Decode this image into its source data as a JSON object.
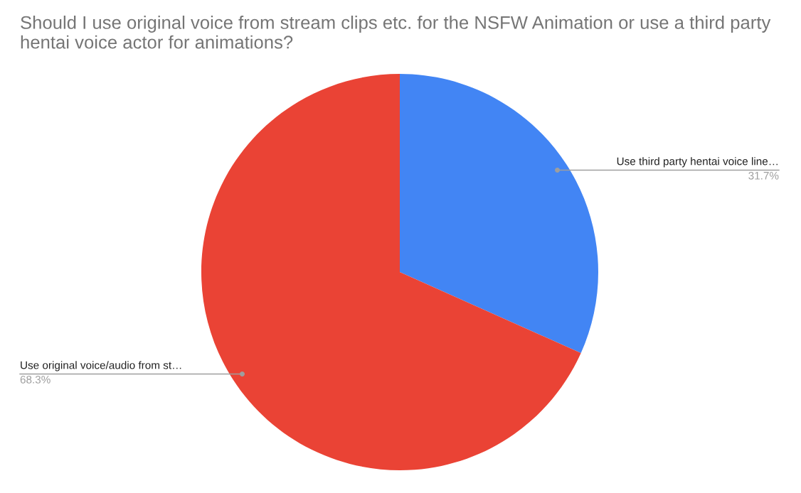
{
  "chart_data": {
    "type": "pie",
    "title": "Should I use original voice from stream clips etc. for the NSFW Animation or use a third party hentai voice actor for animations?",
    "categories": [
      "Use third party hentai voice line…",
      "Use original voice/audio from st…"
    ],
    "values": [
      31.7,
      68.3
    ],
    "colors": [
      "#4285f4",
      "#ea4335"
    ],
    "value_labels": [
      "31.7%",
      "68.3%"
    ]
  }
}
